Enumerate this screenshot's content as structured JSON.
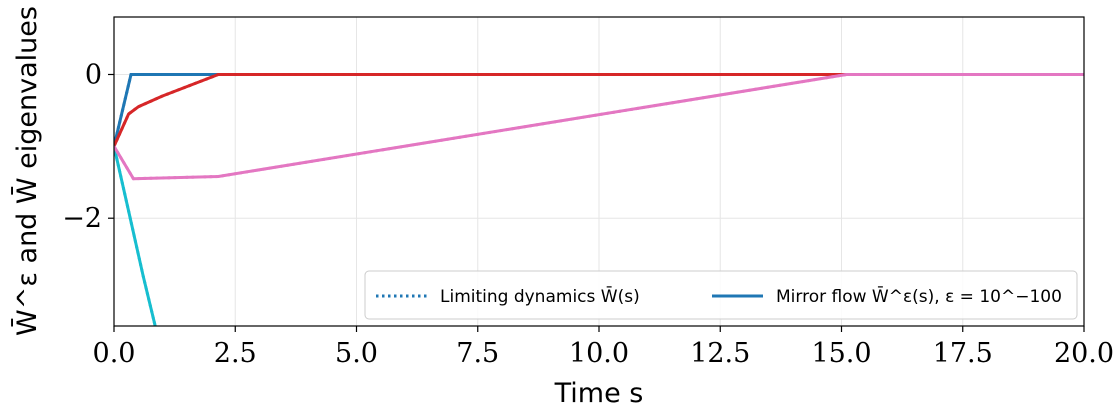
{
  "chart_data": {
    "type": "line",
    "xlabel": "Time s",
    "ylabel": "W̄^ε and W̄ eigenvalues",
    "xlim": [
      0,
      20
    ],
    "ylim": [
      -3.5,
      0.8
    ],
    "x_ticks": [
      "0.0",
      "2.5",
      "5.0",
      "7.5",
      "10.0",
      "12.5",
      "15.0",
      "17.5",
      "20.0"
    ],
    "y_ticks": [
      "−2",
      "0"
    ],
    "grid": true,
    "legend": {
      "placement": "lower-right",
      "entries": [
        {
          "label": "Limiting dynamics W̄(s)",
          "style": "dotted",
          "color": "#1f77b4"
        },
        {
          "label": "Mirror flow W̄^ε(s), ε = 10^−100",
          "style": "solid",
          "color": "#1f77b4"
        }
      ]
    },
    "series": [
      {
        "color": "#17becf",
        "x": [
          0,
          0.3,
          0.6,
          0.85
        ],
        "y": [
          -1,
          -1.9,
          -2.8,
          -3.5
        ]
      },
      {
        "color": "#1f77b4",
        "x": [
          0,
          0.35,
          20
        ],
        "y": [
          -1,
          0,
          0
        ]
      },
      {
        "color": "#d62728",
        "x": [
          0,
          0.3,
          0.5,
          1.0,
          2.15,
          20
        ],
        "y": [
          -1,
          -0.55,
          -0.45,
          -0.3,
          0,
          0
        ]
      },
      {
        "color": "#e377c2",
        "x": [
          0,
          0.4,
          2.15,
          15.1,
          20
        ],
        "y": [
          -1,
          -1.45,
          -1.42,
          0,
          0
        ]
      }
    ]
  }
}
